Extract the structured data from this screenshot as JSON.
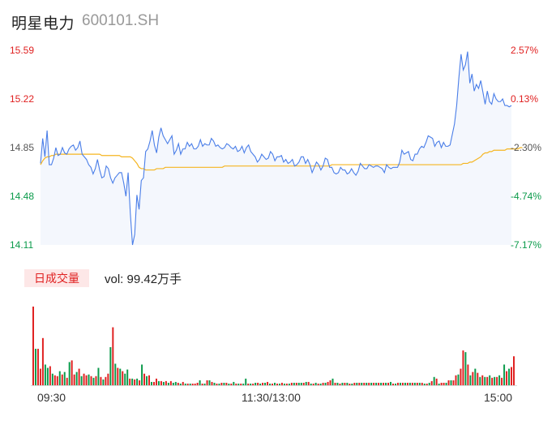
{
  "stock": {
    "name": "明星电力",
    "code": "600101.SH"
  },
  "volume": {
    "label": "日成交量",
    "text": "vol: 99.42万手"
  },
  "colors": {
    "up": "#e02020",
    "down": "#0a9a4a",
    "price_line": "#4a7ee8",
    "avg_line": "#f5b520",
    "fill": "#f4f7fd",
    "grid": "#d9d9d9"
  },
  "chart_data": [
    {
      "type": "line",
      "series": [
        {
          "values": [
            14.73,
            14.92,
            14.78,
            14.98,
            14.72,
            14.72,
            14.77,
            14.85,
            14.79,
            14.8,
            14.85,
            14.81,
            14.8,
            14.84,
            14.86,
            14.87,
            14.83,
            14.85,
            14.9,
            14.8,
            14.78,
            14.76,
            14.72,
            14.7,
            14.65,
            14.69,
            14.76,
            14.68,
            14.62,
            14.63,
            14.71,
            14.69,
            14.62,
            14.58,
            14.62,
            14.64,
            14.66,
            14.66,
            14.58,
            14.48,
            14.66,
            14.35,
            14.11,
            14.19,
            14.49,
            14.38,
            14.6,
            14.62,
            14.82,
            14.84,
            14.9,
            14.98,
            14.87,
            14.81,
            14.93,
            15.0,
            14.94,
            14.91,
            14.88,
            14.91,
            14.94,
            14.8,
            14.83,
            14.88,
            14.8,
            14.84,
            14.84,
            14.89,
            14.86,
            14.88,
            14.84,
            14.84,
            14.86,
            14.91,
            14.86,
            14.88,
            14.87,
            14.87,
            14.92,
            14.9,
            14.86,
            14.87,
            14.85,
            14.84,
            14.85,
            14.88,
            14.87,
            14.85,
            14.84,
            14.86,
            14.82,
            14.83,
            14.86,
            14.81,
            14.85,
            14.87,
            14.82,
            14.8,
            14.78,
            14.74,
            14.76,
            14.8,
            14.78,
            14.76,
            14.77,
            14.82,
            14.8,
            14.75,
            14.78,
            14.78,
            14.79,
            14.74,
            14.76,
            14.73,
            14.74,
            14.76,
            14.71,
            14.72,
            14.74,
            14.78,
            14.78,
            14.73,
            14.76,
            14.72,
            14.66,
            14.7,
            14.74,
            14.72,
            14.68,
            14.71,
            14.77,
            14.76,
            14.7,
            14.7,
            14.66,
            14.65,
            14.66,
            14.7,
            14.68,
            14.68,
            14.65,
            14.66,
            14.69,
            14.66,
            14.64,
            14.67,
            14.73,
            14.71,
            14.69,
            14.69,
            14.72,
            14.71,
            14.7,
            14.71,
            14.71,
            14.7,
            14.69,
            14.66,
            14.72,
            14.7,
            14.69,
            14.7,
            14.7,
            14.7,
            14.74,
            14.83,
            14.8,
            14.81,
            14.82,
            14.76,
            14.75,
            14.8,
            14.8,
            14.84,
            14.86,
            14.85,
            14.89,
            14.94,
            14.93,
            14.92,
            14.86,
            14.89,
            14.9,
            14.85,
            14.89,
            14.86,
            14.86,
            14.87,
            14.95,
            15.03,
            15.17,
            15.38,
            15.56,
            15.44,
            15.48,
            15.58,
            15.34,
            15.41,
            15.28,
            15.33,
            15.3,
            15.36,
            15.27,
            15.18,
            15.28,
            15.2,
            15.18,
            15.26,
            15.22,
            15.2,
            15.2,
            15.22,
            15.17,
            15.17,
            15.16,
            15.17
          ]
        },
        {
          "values": [
            14.72,
            14.75,
            14.77,
            14.78,
            14.78,
            14.79,
            14.79,
            14.8,
            14.8,
            14.8,
            14.8,
            14.8,
            14.8,
            14.8,
            14.8,
            14.8,
            14.8,
            14.8,
            14.8,
            14.8,
            14.8,
            14.8,
            14.8,
            14.8,
            14.8,
            14.8,
            14.8,
            14.8,
            14.79,
            14.79,
            14.79,
            14.79,
            14.79,
            14.79,
            14.79,
            14.79,
            14.79,
            14.78,
            14.78,
            14.78,
            14.78,
            14.78,
            14.77,
            14.75,
            14.73,
            14.7,
            14.69,
            14.69,
            14.68,
            14.68,
            14.68,
            14.68,
            14.68,
            14.69,
            14.69,
            14.69,
            14.69,
            14.7,
            14.7,
            14.7,
            14.7,
            14.7,
            14.7,
            14.7,
            14.7,
            14.7,
            14.7,
            14.7,
            14.7,
            14.7,
            14.7,
            14.7,
            14.7,
            14.7,
            14.7,
            14.7,
            14.7,
            14.7,
            14.7,
            14.7,
            14.7,
            14.7,
            14.7,
            14.7,
            14.71,
            14.71,
            14.71,
            14.71,
            14.71,
            14.71,
            14.71,
            14.71,
            14.71,
            14.71,
            14.71,
            14.71,
            14.71,
            14.71,
            14.71,
            14.71,
            14.71,
            14.71,
            14.71,
            14.71,
            14.71,
            14.71,
            14.71,
            14.71,
            14.71,
            14.71,
            14.71,
            14.71,
            14.71,
            14.71,
            14.71,
            14.71,
            14.71,
            14.71,
            14.71,
            14.71,
            14.71,
            14.71,
            14.71,
            14.71,
            14.71,
            14.71,
            14.71,
            14.71,
            14.71,
            14.71,
            14.71,
            14.71,
            14.71,
            14.72,
            14.72,
            14.72,
            14.72,
            14.72,
            14.72,
            14.72,
            14.72,
            14.72,
            14.72,
            14.72,
            14.72,
            14.72,
            14.72,
            14.72,
            14.72,
            14.72,
            14.72,
            14.72,
            14.72,
            14.72,
            14.72,
            14.72,
            14.72,
            14.72,
            14.72,
            14.72,
            14.72,
            14.72,
            14.72,
            14.72,
            14.72,
            14.72,
            14.72,
            14.72,
            14.72,
            14.72,
            14.72,
            14.72,
            14.72,
            14.72,
            14.72,
            14.72,
            14.72,
            14.72,
            14.72,
            14.72,
            14.72,
            14.72,
            14.72,
            14.72,
            14.72,
            14.72,
            14.72,
            14.72,
            14.72,
            14.72,
            14.72,
            14.72,
            14.72,
            14.73,
            14.73,
            14.73,
            14.74,
            14.74,
            14.75,
            14.76,
            14.77,
            14.78,
            14.8,
            14.81,
            14.81,
            14.82,
            14.82,
            14.83,
            14.83,
            14.83,
            14.83,
            14.83,
            14.83,
            14.84,
            14.84,
            14.84,
            14.84,
            14.84,
            14.84,
            14.85,
            14.85
          ]
        }
      ],
      "y_ticks": [
        "15.59",
        "15.22",
        "14.85",
        "14.48",
        "14.11"
      ],
      "pct_ticks": [
        "2.57%",
        "0.13%",
        "-2.30%",
        "-4.74%",
        "-7.17%"
      ],
      "ylim": [
        14.11,
        15.59
      ],
      "x_ticks": [
        "09:30",
        "11:30/13:00",
        "15:00"
      ],
      "grid": false
    },
    {
      "type": "bar",
      "values": [
        95,
        44,
        44,
        20,
        57,
        25,
        21,
        23,
        14,
        12,
        11,
        17,
        13,
        16,
        9,
        28,
        30,
        13,
        16,
        20,
        11,
        14,
        12,
        13,
        11,
        9,
        11,
        21,
        10,
        7,
        10,
        14,
        46,
        70,
        26,
        21,
        20,
        17,
        14,
        19,
        8,
        8,
        7,
        8,
        6,
        25,
        14,
        11,
        12,
        4,
        4,
        8,
        5,
        5,
        4,
        5,
        3,
        5,
        3,
        4,
        3,
        2,
        4,
        2,
        2,
        2,
        2,
        2,
        3,
        6,
        2,
        2,
        6,
        6,
        4,
        3,
        2,
        2,
        3,
        3,
        3,
        2,
        2,
        4,
        2,
        2,
        2,
        2,
        8,
        2,
        2,
        2,
        3,
        3,
        2,
        3,
        3,
        4,
        2,
        2,
        3,
        2,
        2,
        3,
        2,
        2,
        2,
        3,
        3,
        3,
        3,
        3,
        3,
        4,
        4,
        2,
        2,
        3,
        2,
        2,
        3,
        3,
        4,
        6,
        8,
        3,
        3,
        2,
        3,
        3,
        3,
        2,
        2,
        3,
        3,
        3,
        3,
        3,
        3,
        3,
        3,
        3,
        3,
        3,
        3,
        3,
        3,
        3,
        4,
        2,
        2,
        3,
        3,
        3,
        3,
        3,
        3,
        3,
        3,
        3,
        3,
        3,
        2,
        2,
        3,
        5,
        10,
        8,
        2,
        3,
        3,
        3,
        6,
        6,
        6,
        12,
        13,
        20,
        42,
        40,
        25,
        12,
        16,
        20,
        15,
        10,
        12,
        10,
        10,
        12,
        9,
        10,
        10,
        12,
        9,
        25,
        17,
        20,
        22,
        35
      ],
      "up": [
        1,
        0,
        1,
        1,
        1,
        0,
        0,
        1,
        0,
        1,
        1,
        0,
        1,
        0,
        1,
        0,
        1,
        1,
        0,
        1,
        0,
        1,
        1,
        0,
        1,
        0,
        1,
        0,
        1,
        0,
        1,
        1,
        0,
        1,
        0,
        1,
        0,
        1,
        0,
        0,
        1,
        0,
        1,
        0,
        1,
        0,
        1,
        0,
        1,
        0,
        1,
        1,
        0,
        1,
        0,
        1,
        0,
        1,
        0,
        0,
        1,
        0,
        1,
        0,
        1,
        0,
        1,
        1,
        1,
        0,
        1,
        0,
        1,
        0,
        1,
        0,
        1,
        0,
        1,
        0,
        1,
        0,
        1,
        0,
        1,
        0,
        1,
        0,
        0,
        1,
        0,
        1,
        0,
        1,
        0,
        1,
        0,
        1,
        0,
        1,
        0,
        1,
        0,
        1,
        0,
        1,
        0,
        1,
        0,
        1,
        0,
        0,
        1,
        0,
        1,
        0,
        1,
        0,
        1,
        0,
        1,
        0,
        1,
        1,
        0,
        1,
        0,
        1,
        0,
        1,
        0,
        1,
        0,
        1,
        0,
        1,
        0,
        1,
        0,
        1,
        0,
        1,
        0,
        1,
        0,
        1,
        0,
        1,
        0,
        1,
        0,
        1,
        0,
        1,
        0,
        1,
        0,
        1,
        0,
        1,
        0,
        1,
        0,
        1,
        0,
        1,
        0,
        1,
        0,
        1,
        1,
        0,
        1,
        0,
        1,
        1,
        0,
        1,
        1,
        0,
        1,
        0,
        1,
        0,
        1,
        0,
        1,
        0,
        1,
        0,
        1,
        0,
        1,
        0,
        1,
        0,
        1,
        0,
        1,
        1
      ]
    }
  ]
}
